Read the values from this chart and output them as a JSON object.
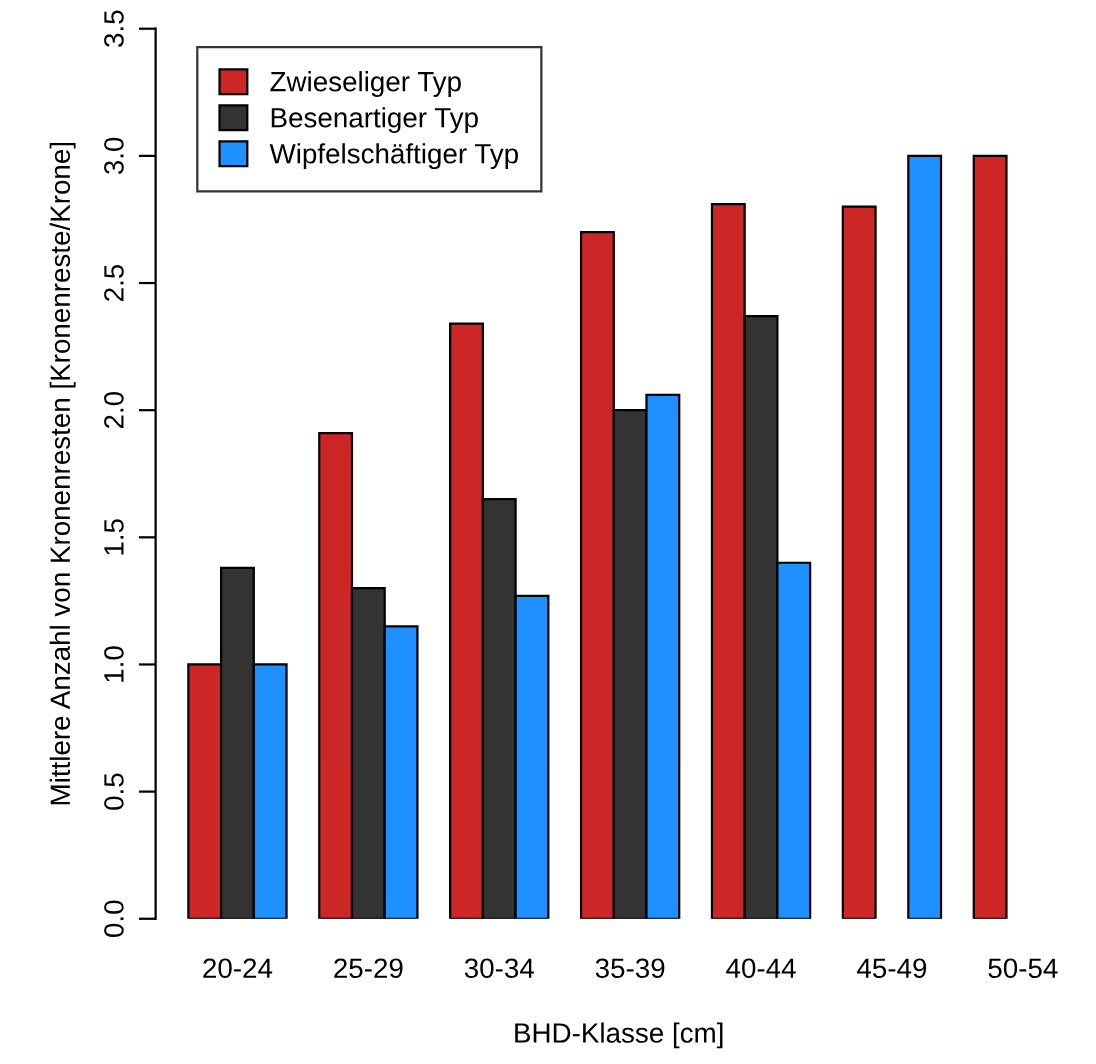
{
  "chart_data": {
    "type": "bar",
    "xlabel": "BHD-Klasse [cm]",
    "ylabel": "Mittlere Anzahl von Kronenresten [Kronenreste/Krone]",
    "categories": [
      "20-24",
      "25-29",
      "30-34",
      "35-39",
      "40-44",
      "45-49",
      "50-54"
    ],
    "series": [
      {
        "name": "Zwieseliger Typ",
        "color": "#cd2626",
        "values": [
          1.0,
          1.91,
          2.34,
          2.7,
          2.81,
          2.8,
          3.0
        ]
      },
      {
        "name": "Besenartiger Typ",
        "color": "#333333",
        "values": [
          1.38,
          1.3,
          1.65,
          2.0,
          2.37,
          null,
          null
        ]
      },
      {
        "name": "Wipfelschäftiger Typ",
        "color": "#1e90ff",
        "values": [
          1.0,
          1.15,
          1.27,
          2.06,
          1.4,
          3.0,
          null
        ]
      }
    ],
    "ylim": [
      0,
      3.5
    ],
    "yticks": [
      {
        "value": 0,
        "label": "0.0"
      },
      0.5,
      {
        "value": 1,
        "label": "1.0"
      },
      1.5,
      {
        "value": 2,
        "label": "2.0"
      },
      2.5,
      {
        "value": 3,
        "label": "3.0"
      },
      3.5
    ],
    "grid": false,
    "legend": "top left"
  }
}
